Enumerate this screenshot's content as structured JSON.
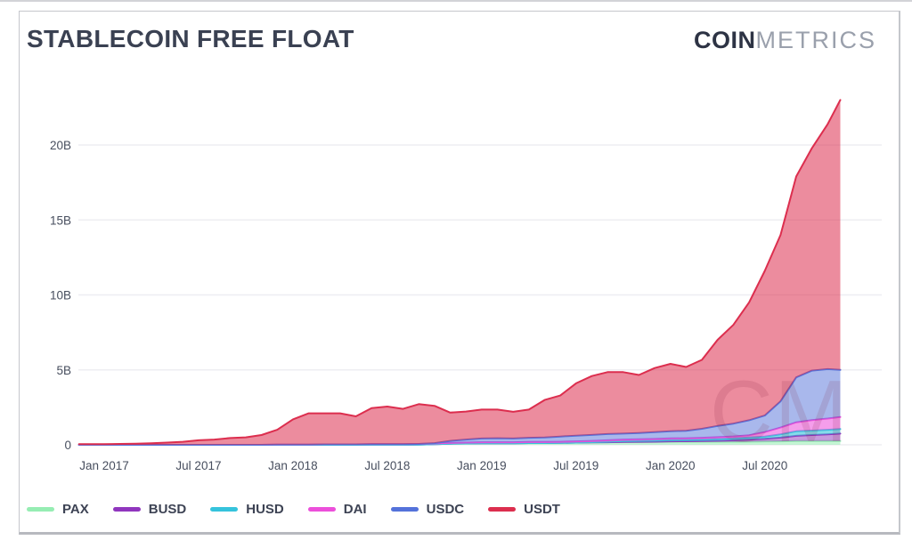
{
  "header": {
    "title": "STABLECOIN FREE FLOAT",
    "logo_bold": "COIN",
    "logo_light": "METRICS"
  },
  "watermark": "CM",
  "chart_data": {
    "type": "area",
    "stacked": true,
    "title": "STABLECOIN FREE FLOAT",
    "unit": "USD billions",
    "x_unit": "months since Jan 2017",
    "x": [
      -1.6,
      -1,
      0,
      1,
      2,
      3,
      4,
      5,
      6,
      7,
      8,
      9,
      10,
      11,
      12,
      13,
      14,
      15,
      16,
      17,
      18,
      19,
      20,
      21,
      22,
      23,
      24,
      25,
      26,
      27,
      28,
      29,
      30,
      31,
      32,
      33,
      34,
      35,
      36,
      37,
      38,
      39,
      40,
      41,
      42,
      43,
      44,
      45,
      46,
      46.8
    ],
    "x_ticks": [
      {
        "m": 0,
        "label": "Jan 2017"
      },
      {
        "m": 6,
        "label": "Jul 2017"
      },
      {
        "m": 12,
        "label": "Jan 2018"
      },
      {
        "m": 18,
        "label": "Jul 2018"
      },
      {
        "m": 24,
        "label": "Jan 2019"
      },
      {
        "m": 30,
        "label": "Jul 2019"
      },
      {
        "m": 36,
        "label": "Jan 2020"
      },
      {
        "m": 42,
        "label": "Jul 2020"
      }
    ],
    "y_ticks": [
      {
        "v": 0,
        "label": "0"
      },
      {
        "v": 5,
        "label": "5B"
      },
      {
        "v": 10,
        "label": "10B"
      },
      {
        "v": 15,
        "label": "15B"
      },
      {
        "v": 20,
        "label": "20B"
      }
    ],
    "ylim": [
      0,
      23.8
    ],
    "legend_position": "bottom",
    "series": [
      {
        "name": "PAX",
        "color": "#96EDB3",
        "fill_opacity": 0.55,
        "values": [
          0,
          0,
          0,
          0,
          0,
          0,
          0,
          0,
          0,
          0,
          0,
          0,
          0,
          0,
          0,
          0,
          0,
          0,
          0,
          0,
          0,
          0,
          0.01,
          0.04,
          0.08,
          0.09,
          0.1,
          0.1,
          0.1,
          0.12,
          0.12,
          0.13,
          0.15,
          0.16,
          0.17,
          0.18,
          0.18,
          0.19,
          0.2,
          0.2,
          0.2,
          0.2,
          0.2,
          0.21,
          0.22,
          0.23,
          0.25,
          0.25,
          0.25,
          0.25
        ]
      },
      {
        "name": "BUSD",
        "color": "#9036BE",
        "fill_opacity": 0.5,
        "values": [
          0,
          0,
          0,
          0,
          0,
          0,
          0,
          0,
          0,
          0,
          0,
          0,
          0,
          0,
          0,
          0,
          0,
          0,
          0,
          0,
          0,
          0,
          0,
          0,
          0,
          0,
          0,
          0,
          0,
          0,
          0,
          0,
          0,
          0,
          0,
          0.01,
          0.02,
          0.02,
          0.03,
          0.04,
          0.05,
          0.07,
          0.1,
          0.14,
          0.18,
          0.25,
          0.35,
          0.4,
          0.45,
          0.5
        ]
      },
      {
        "name": "HUSD",
        "color": "#35C3DC",
        "fill_opacity": 0.6,
        "values": [
          0,
          0,
          0,
          0,
          0,
          0,
          0,
          0,
          0,
          0,
          0,
          0,
          0,
          0,
          0,
          0,
          0,
          0,
          0,
          0,
          0,
          0,
          0,
          0,
          0,
          0,
          0,
          0,
          0,
          0,
          0,
          0,
          0,
          0.02,
          0.04,
          0.06,
          0.07,
          0.08,
          0.1,
          0.1,
          0.11,
          0.12,
          0.13,
          0.14,
          0.15,
          0.22,
          0.3,
          0.3,
          0.3,
          0.3
        ]
      },
      {
        "name": "DAI",
        "color": "#EC4FDA",
        "fill_opacity": 0.55,
        "values": [
          0,
          0,
          0,
          0,
          0,
          0,
          0,
          0,
          0,
          0,
          0,
          0,
          0,
          0.01,
          0.02,
          0.02,
          0.03,
          0.03,
          0.03,
          0.04,
          0.05,
          0.05,
          0.05,
          0.05,
          0.05,
          0.06,
          0.07,
          0.07,
          0.07,
          0.07,
          0.07,
          0.07,
          0.08,
          0.08,
          0.09,
          0.1,
          0.1,
          0.1,
          0.1,
          0.1,
          0.11,
          0.12,
          0.13,
          0.15,
          0.3,
          0.45,
          0.6,
          0.7,
          0.75,
          0.8
        ]
      },
      {
        "name": "USDC",
        "color": "#5472DA",
        "fill_opacity": 0.5,
        "values": [
          0,
          0,
          0,
          0,
          0,
          0,
          0,
          0,
          0,
          0,
          0,
          0,
          0,
          0,
          0,
          0,
          0,
          0,
          0,
          0,
          0,
          0,
          0,
          0.02,
          0.13,
          0.2,
          0.25,
          0.27,
          0.25,
          0.28,
          0.3,
          0.35,
          0.38,
          0.4,
          0.42,
          0.4,
          0.42,
          0.45,
          0.48,
          0.5,
          0.6,
          0.75,
          0.85,
          1.0,
          1.1,
          1.75,
          3.0,
          3.3,
          3.3,
          3.15
        ]
      },
      {
        "name": "USDT",
        "color": "#DC2E4E",
        "fill_opacity": 0.55,
        "values": [
          0.04,
          0.05,
          0.05,
          0.06,
          0.07,
          0.1,
          0.15,
          0.2,
          0.3,
          0.35,
          0.45,
          0.5,
          0.65,
          0.99,
          1.68,
          2.08,
          2.07,
          2.07,
          1.87,
          2.41,
          2.5,
          2.35,
          2.65,
          2.49,
          1.89,
          1.87,
          1.93,
          1.91,
          1.78,
          1.88,
          2.5,
          2.74,
          3.49,
          3.93,
          4.13,
          4.1,
          3.87,
          4.28,
          4.49,
          4.25,
          4.6,
          5.74,
          6.59,
          7.86,
          9.65,
          11.1,
          13.4,
          14.85,
          16.35,
          18.0
        ]
      }
    ]
  }
}
